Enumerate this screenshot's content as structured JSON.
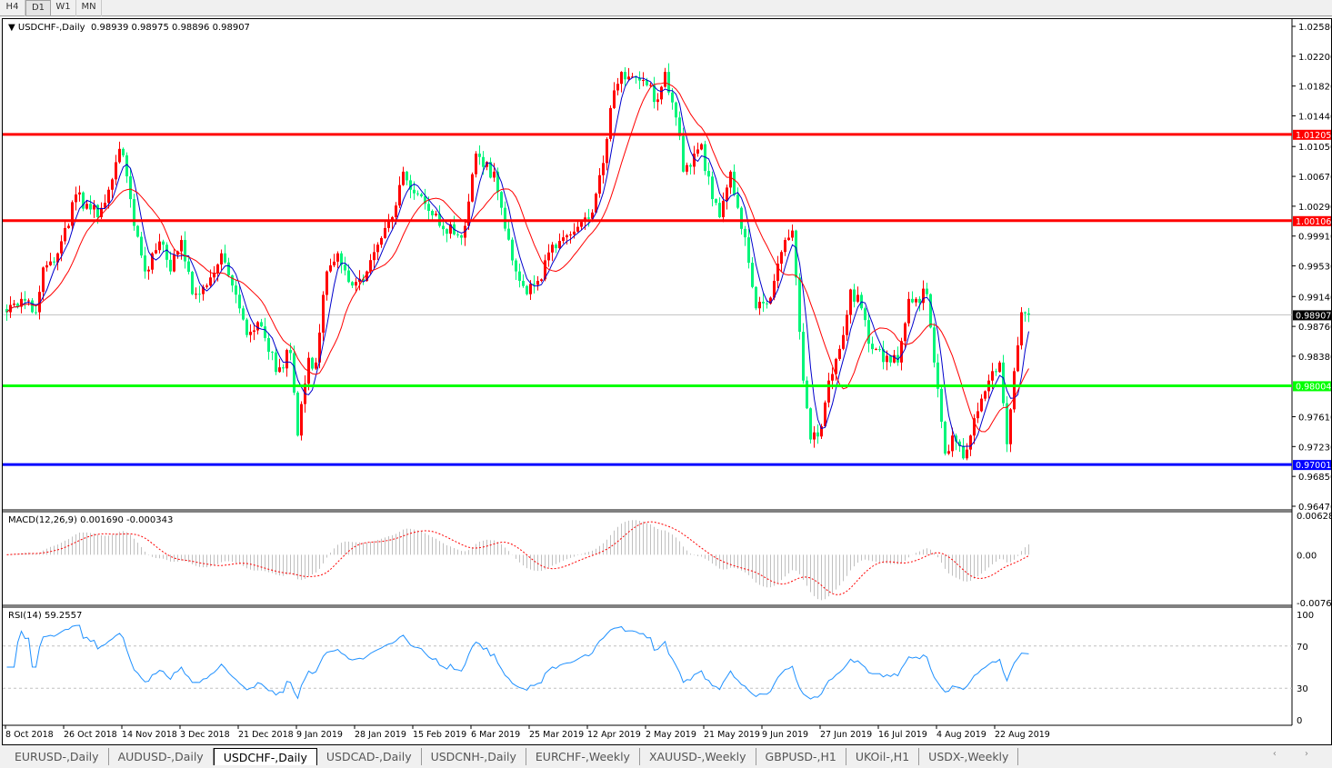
{
  "timeframes": [
    "H4",
    "D1",
    "W1",
    "MN"
  ],
  "selected_timeframe": "D1",
  "chart_title": "USDCHF-,Daily",
  "ohlc_readout": "0.98939 0.98975 0.98896 0.98907",
  "macd_label": "MACD(12,26,9) 0.001690 -0.000343",
  "rsi_label": "RSI(14) 59.2557",
  "tabs": [
    "EURUSD-,Daily",
    "AUDUSD-,Daily",
    "USDCHF-,Daily",
    "USDCAD-,Daily",
    "USDCNH-,Daily",
    "EURCHF-,Weekly",
    "XAUUSD-,Weekly",
    "GBPUSD-,H1",
    "UKOil-,H1",
    "USDX-,Weekly"
  ],
  "active_tab": "USDCHF-,Daily",
  "scroll_arrows": "‹ ›",
  "colors": {
    "bull": "#ff0000",
    "bear": "#00f57a",
    "fast_ma": "#0000cc",
    "slow_ma": "#ff0000",
    "rsi": "#1e90ff",
    "macd_hist": "#c0c0c0",
    "macd_signal": "#ff0000"
  },
  "chart_data": {
    "type": "candlestick",
    "symbol": "USDCHF-",
    "timeframe": "Daily",
    "ylim": [
      0.9647,
      1.0258
    ],
    "price_ticks": [
      "1.02580",
      "1.02200",
      "1.01820",
      "1.01440",
      "1.01050",
      "1.00670",
      "1.00290",
      "0.99910",
      "0.99530",
      "0.99140",
      "0.98760",
      "0.98380",
      "0.97610",
      "0.97230",
      "0.96850",
      "0.96470"
    ],
    "date_ticks": [
      "8 Oct 2018",
      "26 Oct 2018",
      "14 Nov 2018",
      "3 Dec 2018",
      "21 Dec 2018",
      "9 Jan 2019",
      "28 Jan 2019",
      "15 Feb 2019",
      "6 Mar 2019",
      "25 Mar 2019",
      "12 Apr 2019",
      "2 May 2019",
      "21 May 2019",
      "9 Jun 2019",
      "27 Jun 2019",
      "16 Jul 2019",
      "4 Aug 2019",
      "22 Aug 2019"
    ],
    "bars_per_date_tick": 16,
    "horizontal_lines": [
      {
        "price": 1.01205,
        "label": "1.01205",
        "color": "#ff0000"
      },
      {
        "price": 1.00106,
        "label": "1.00106",
        "color": "#ff0000"
      },
      {
        "price": 0.98004,
        "label": "0.98004",
        "color": "#00ff00"
      },
      {
        "price": 0.97001,
        "label": "0.97001",
        "color": "#0000ff"
      }
    ],
    "current_price": {
      "price": 0.98907,
      "label": "0.98907"
    },
    "close_path": [
      [
        0,
        0.9894
      ],
      [
        4,
        0.9911
      ],
      [
        8,
        0.9894
      ],
      [
        10,
        0.9951
      ],
      [
        14,
        0.9969
      ],
      [
        19,
        1.0044
      ],
      [
        22,
        1.0032
      ],
      [
        25,
        1.0015
      ],
      [
        28,
        1.005
      ],
      [
        31,
        1.0102
      ],
      [
        33,
        1.0067
      ],
      [
        35,
        1.0004
      ],
      [
        38,
        0.9946
      ],
      [
        40,
        0.9969
      ],
      [
        43,
        0.998
      ],
      [
        45,
        0.9946
      ],
      [
        48,
        0.9986
      ],
      [
        51,
        0.9917
      ],
      [
        55,
        0.9928
      ],
      [
        59,
        0.9969
      ],
      [
        62,
        0.9928
      ],
      [
        66,
        0.9865
      ],
      [
        70,
        0.9876
      ],
      [
        74,
        0.9818
      ],
      [
        78,
        0.9842
      ],
      [
        80,
        0.9737
      ],
      [
        83,
        0.9836
      ],
      [
        85,
        0.983
      ],
      [
        88,
        0.9946
      ],
      [
        91,
        0.9969
      ],
      [
        95,
        0.9928
      ],
      [
        99,
        0.9946
      ],
      [
        102,
        0.998
      ],
      [
        106,
        1.0015
      ],
      [
        109,
        1.0073
      ],
      [
        111,
        1.005
      ],
      [
        115,
        1.0032
      ],
      [
        119,
        1.0004
      ],
      [
        124,
        0.9992
      ],
      [
        126,
        1.0004
      ],
      [
        129,
        1.0096
      ],
      [
        131,
        1.0079
      ],
      [
        134,
        1.0073
      ],
      [
        136,
        1.0027
      ],
      [
        140,
        0.9946
      ],
      [
        143,
        0.9917
      ],
      [
        146,
        0.9934
      ],
      [
        150,
        0.998
      ],
      [
        154,
        0.9992
      ],
      [
        158,
        1.0009
      ],
      [
        161,
        1.0021
      ],
      [
        164,
        1.0084
      ],
      [
        166,
        1.0154
      ],
      [
        169,
        1.02
      ],
      [
        171,
        1.0194
      ],
      [
        174,
        1.0189
      ],
      [
        176,
        1.0183
      ],
      [
        179,
        1.0165
      ],
      [
        181,
        1.02
      ],
      [
        184,
        1.0142
      ],
      [
        186,
        1.0073
      ],
      [
        189,
        1.0096
      ],
      [
        191,
        1.0108
      ],
      [
        194,
        1.0038
      ],
      [
        196,
        1.0015
      ],
      [
        199,
        1.0073
      ],
      [
        201,
        1.0027
      ],
      [
        204,
        0.9957
      ],
      [
        206,
        0.9899
      ],
      [
        209,
        0.9905
      ],
      [
        211,
        0.9934
      ],
      [
        214,
        0.9986
      ],
      [
        216,
        0.9998
      ],
      [
        219,
        0.9807
      ],
      [
        221,
        0.9732
      ],
      [
        224,
        0.9749
      ],
      [
        226,
        0.9807
      ],
      [
        230,
        0.9865
      ],
      [
        232,
        0.9923
      ],
      [
        235,
        0.9899
      ],
      [
        238,
        0.9847
      ],
      [
        240,
        0.9847
      ],
      [
        243,
        0.983
      ],
      [
        245,
        0.983
      ],
      [
        248,
        0.9911
      ],
      [
        250,
        0.9911
      ],
      [
        253,
        0.9917
      ],
      [
        255,
        0.983
      ],
      [
        258,
        0.9714
      ],
      [
        260,
        0.9737
      ],
      [
        263,
        0.9708
      ],
      [
        265,
        0.9737
      ],
      [
        268,
        0.9784
      ],
      [
        270,
        0.9807
      ],
      [
        273,
        0.983
      ],
      [
        275,
        0.9726
      ],
      [
        277,
        0.9819
      ],
      [
        279,
        0.9894
      ],
      [
        281,
        0.98907
      ]
    ],
    "macd": {
      "params": "12,26,9",
      "ylim": [
        -0.00762,
        0.006286
      ],
      "ticks": [
        "0.006286",
        "0.00",
        "-0.00762"
      ]
    },
    "rsi": {
      "period": 14,
      "ylim": [
        0,
        100
      ],
      "levels": [
        70,
        30
      ],
      "ticks": [
        "100",
        "70",
        "30",
        "0"
      ]
    }
  }
}
